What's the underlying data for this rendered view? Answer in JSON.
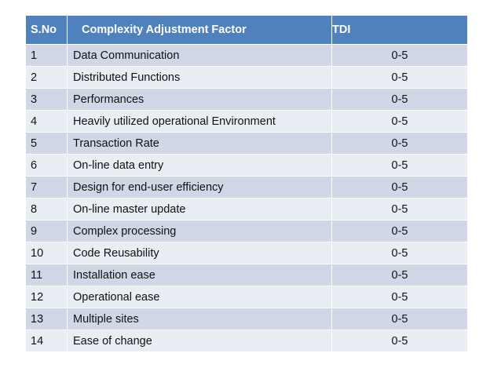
{
  "table": {
    "headers": {
      "sno": "S.No",
      "factor": "Complexity Adjustment Factor",
      "tdi": "TDI"
    },
    "rows": [
      {
        "sno": "1",
        "factor": "Data Communication",
        "tdi": "0-5"
      },
      {
        "sno": "2",
        "factor": "Distributed Functions",
        "tdi": "0-5"
      },
      {
        "sno": "3",
        "factor": "Performances",
        "tdi": "0-5"
      },
      {
        "sno": "4",
        "factor": "Heavily utilized operational Environment",
        "tdi": "0-5"
      },
      {
        "sno": "5",
        "factor": "Transaction Rate",
        "tdi": "0-5"
      },
      {
        "sno": "6",
        "factor": "On-line data entry",
        "tdi": "0-5"
      },
      {
        "sno": "7",
        "factor": "Design for end-user efficiency",
        "tdi": "0-5"
      },
      {
        "sno": "8",
        "factor": "On-line master update",
        "tdi": "0-5"
      },
      {
        "sno": "9",
        "factor": "Complex processing",
        "tdi": "0-5"
      },
      {
        "sno": "10",
        "factor": "Code Reusability",
        "tdi": "0-5"
      },
      {
        "sno": "11",
        "factor": "Installation ease",
        "tdi": "0-5"
      },
      {
        "sno": "12",
        "factor": "Operational ease",
        "tdi": "0-5"
      },
      {
        "sno": "13",
        "factor": "Multiple sites",
        "tdi": "0-5"
      },
      {
        "sno": "14",
        "factor": "Ease of change",
        "tdi": "0-5"
      }
    ]
  },
  "colors": {
    "header": "#4f81bd",
    "row_odd": "#d0d8e8",
    "row_even": "#e9edf4"
  }
}
